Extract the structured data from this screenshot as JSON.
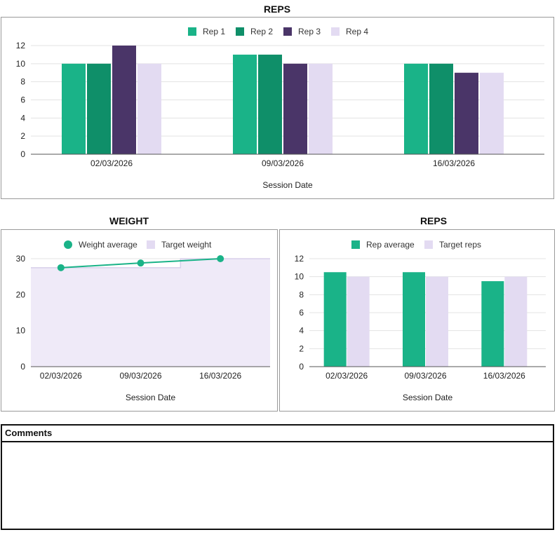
{
  "charts": {
    "reps_top": {
      "title": "REPS"
    },
    "weight": {
      "title": "WEIGHT"
    },
    "reps_avg": {
      "title": "REPS"
    }
  },
  "comments": {
    "label": "Comments",
    "value": ""
  },
  "colors": {
    "rep1": "#1ab388",
    "rep2": "#0f8f69",
    "rep3": "#4a3568",
    "rep4": "#e3dbf2",
    "target_fill": "#efeaf8",
    "grid": "#e3e3e3",
    "axis": "#555555"
  },
  "chart_data": [
    {
      "type": "bar",
      "title": "REPS",
      "categories": [
        "02/03/2026",
        "09/03/2026",
        "16/03/2026"
      ],
      "series": [
        {
          "name": "Rep 1",
          "values": [
            10,
            11,
            10
          ]
        },
        {
          "name": "Rep 2",
          "values": [
            10,
            11,
            10
          ]
        },
        {
          "name": "Rep 3",
          "values": [
            12,
            10,
            9
          ]
        },
        {
          "name": "Rep 4",
          "values": [
            10,
            10,
            9
          ]
        }
      ],
      "xlabel": "Session Date",
      "ylabel": "",
      "ylim": [
        0,
        12
      ],
      "yticks": [
        0,
        2,
        4,
        6,
        8,
        10,
        12
      ],
      "grid": true,
      "legend": "top"
    },
    {
      "type": "line",
      "title": "WEIGHT",
      "categories": [
        "02/03/2026",
        "09/03/2026",
        "16/03/2026"
      ],
      "series": [
        {
          "name": "Weight average",
          "values": [
            27.5,
            28.8,
            30
          ],
          "style": "line-points"
        },
        {
          "name": "Target weight",
          "values": [
            27.5,
            27.5,
            30
          ],
          "style": "stepped-area"
        }
      ],
      "xlabel": "Session Date",
      "ylabel": "",
      "ylim": [
        0,
        30
      ],
      "yticks": [
        0,
        10,
        20,
        30
      ],
      "grid": true,
      "legend": "top"
    },
    {
      "type": "bar",
      "title": "REPS",
      "categories": [
        "02/03/2026",
        "09/03/2026",
        "16/03/2026"
      ],
      "series": [
        {
          "name": "Rep average",
          "values": [
            10.5,
            10.5,
            9.5
          ]
        },
        {
          "name": "Target reps",
          "values": [
            10,
            10,
            10
          ]
        }
      ],
      "xlabel": "Session Date",
      "ylabel": "",
      "ylim": [
        0,
        12
      ],
      "yticks": [
        0,
        2,
        4,
        6,
        8,
        10,
        12
      ],
      "grid": true,
      "legend": "top"
    }
  ]
}
